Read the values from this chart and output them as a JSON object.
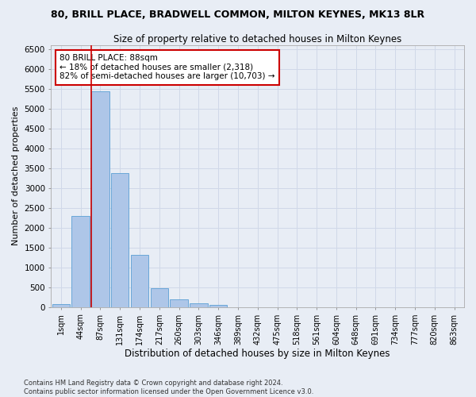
{
  "title1": "80, BRILL PLACE, BRADWELL COMMON, MILTON KEYNES, MK13 8LR",
  "title2": "Size of property relative to detached houses in Milton Keynes",
  "xlabel": "Distribution of detached houses by size in Milton Keynes",
  "ylabel": "Number of detached properties",
  "categories": [
    "1sqm",
    "44sqm",
    "87sqm",
    "131sqm",
    "174sqm",
    "217sqm",
    "260sqm",
    "303sqm",
    "346sqm",
    "389sqm",
    "432sqm",
    "475sqm",
    "518sqm",
    "561sqm",
    "604sqm",
    "648sqm",
    "691sqm",
    "734sqm",
    "777sqm",
    "820sqm",
    "863sqm"
  ],
  "values": [
    80,
    2300,
    5430,
    3380,
    1310,
    480,
    200,
    90,
    55,
    0,
    0,
    0,
    0,
    0,
    0,
    0,
    0,
    0,
    0,
    0,
    0
  ],
  "bar_color": "#aec6e8",
  "bar_edge_color": "#5a9fd4",
  "vline_x_index": 2,
  "vline_color": "#cc0000",
  "annotation_text": "80 BRILL PLACE: 88sqm\n← 18% of detached houses are smaller (2,318)\n82% of semi-detached houses are larger (10,703) →",
  "annotation_box_color": "#ffffff",
  "annotation_box_edge": "#cc0000",
  "ylim": [
    0,
    6600
  ],
  "yticks": [
    0,
    500,
    1000,
    1500,
    2000,
    2500,
    3000,
    3500,
    4000,
    4500,
    5000,
    5500,
    6000,
    6500
  ],
  "grid_color": "#d0d8e8",
  "background_color": "#e8edf5",
  "footer1": "Contains HM Land Registry data © Crown copyright and database right 2024.",
  "footer2": "Contains public sector information licensed under the Open Government Licence v3.0."
}
